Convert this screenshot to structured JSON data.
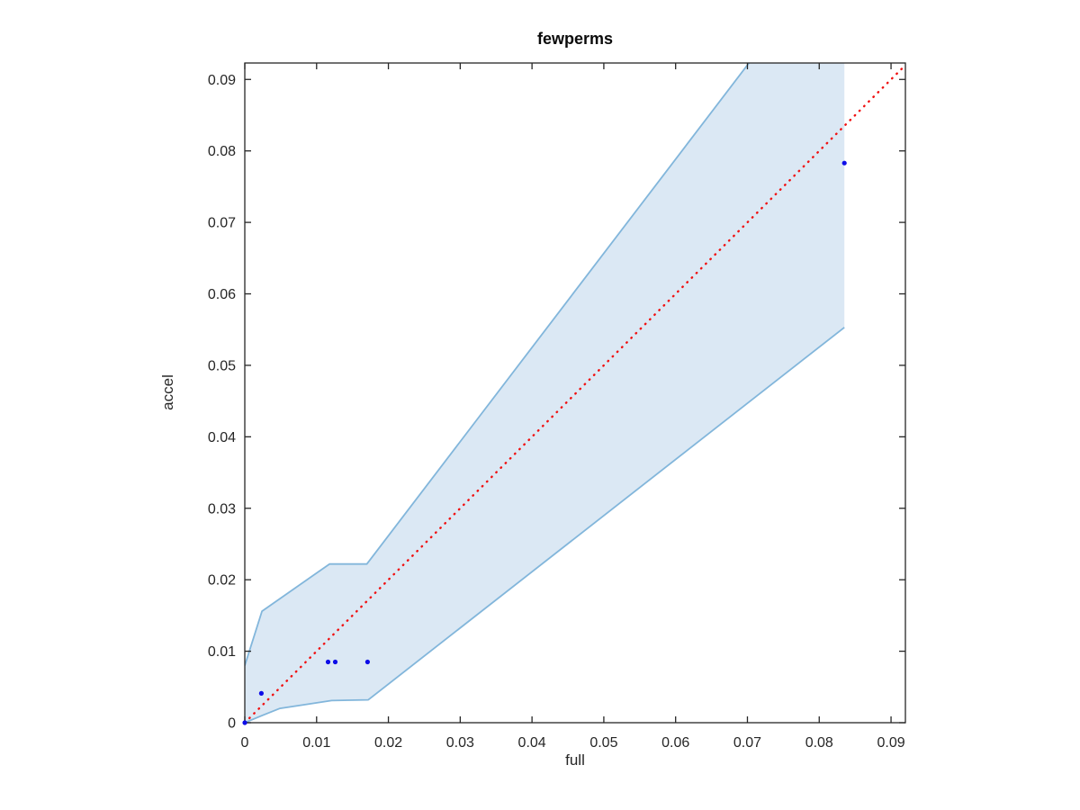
{
  "chart_data": {
    "type": "scatter",
    "title": "fewperms",
    "xlabel": "full",
    "ylabel": "accel",
    "xlim": [
      0,
      0.092
    ],
    "ylim": [
      0,
      0.0923
    ],
    "grid": false,
    "legend": null,
    "xticks": [
      0,
      0.01,
      0.02,
      0.03,
      0.04,
      0.05,
      0.06,
      0.07,
      0.08,
      0.09
    ],
    "xtick_labels": [
      "0",
      "0.01",
      "0.02",
      "0.03",
      "0.04",
      "0.05",
      "0.06",
      "0.07",
      "0.08",
      "0.09"
    ],
    "yticks": [
      0,
      0.01,
      0.02,
      0.03,
      0.04,
      0.05,
      0.06,
      0.07,
      0.08,
      0.09
    ],
    "ytick_labels": [
      "0",
      "0.01",
      "0.02",
      "0.03",
      "0.04",
      "0.05",
      "0.06",
      "0.07",
      "0.08",
      "0.09"
    ],
    "points": [
      [
        0,
        0
      ],
      [
        0.0023,
        0.0041
      ],
      [
        0.0116,
        0.0085
      ],
      [
        0.0126,
        0.0085
      ],
      [
        0.0171,
        0.0085
      ],
      [
        0.0835,
        0.0783
      ]
    ],
    "identity_line": {
      "x": [
        0,
        0.092
      ],
      "y": [
        0,
        0.092
      ],
      "style": "dotted"
    },
    "band": {
      "upper": [
        [
          0,
          0.008
        ],
        [
          0.0024,
          0.0156
        ],
        [
          0.0118,
          0.0222
        ],
        [
          0.017,
          0.0222
        ],
        [
          0.0835,
          0.1098
        ]
      ],
      "lower": [
        [
          0,
          0
        ],
        [
          0.0024,
          0.001
        ],
        [
          0.0049,
          0.002
        ],
        [
          0.0121,
          0.0031
        ],
        [
          0.0172,
          0.0032
        ],
        [
          0.0835,
          0.0553
        ]
      ]
    },
    "colors": {
      "band_fill": "#dbe8f4",
      "band_edge": "#82b6db",
      "identity_line": "#f01111",
      "marker": "#0d0de8",
      "axis": "#262626",
      "title": "#0b0b0b",
      "background": "#ffffff"
    }
  }
}
